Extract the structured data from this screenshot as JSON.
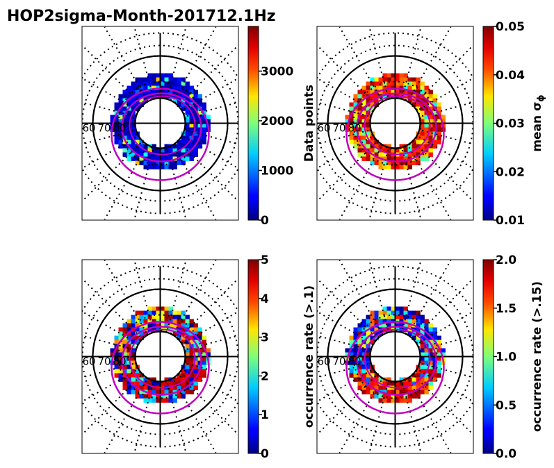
{
  "chart_data": [
    {
      "type": "heatmap",
      "projection": "polar",
      "title": "HOP2sigma-Month-201712.1Hz",
      "panel": "top-left",
      "colorbar": {
        "label": "Data points",
        "ticks": [
          "0",
          "1000",
          "2000",
          "3000"
        ],
        "range": [
          0,
          3900
        ]
      },
      "lat_labels": [
        "60",
        "70",
        "80"
      ]
    },
    {
      "type": "heatmap",
      "projection": "polar",
      "panel": "top-right",
      "colorbar": {
        "label": "mean σ",
        "label_sub": "ϕ",
        "ticks": [
          "0.01",
          "0.02",
          "0.03",
          "0.04",
          "0.05"
        ],
        "range": [
          0.01,
          0.05
        ]
      },
      "lat_labels": [
        "60",
        "70",
        "80"
      ]
    },
    {
      "type": "heatmap",
      "projection": "polar",
      "panel": "bottom-left",
      "colorbar": {
        "label": "occurrence rate (>.1)",
        "ticks": [
          "0",
          "1",
          "2",
          "3",
          "4",
          "5"
        ],
        "range": [
          0,
          5
        ]
      },
      "lat_labels": [
        "60",
        "70",
        "80"
      ]
    },
    {
      "type": "heatmap",
      "projection": "polar",
      "panel": "bottom-right",
      "colorbar": {
        "label": "occurrence rate (>.15)",
        "ticks": [
          "0.0",
          "0.5",
          "1.0",
          "1.5",
          "2.0"
        ],
        "range": [
          0,
          2
        ]
      },
      "lat_labels": [
        "60",
        "70",
        "80"
      ]
    }
  ]
}
